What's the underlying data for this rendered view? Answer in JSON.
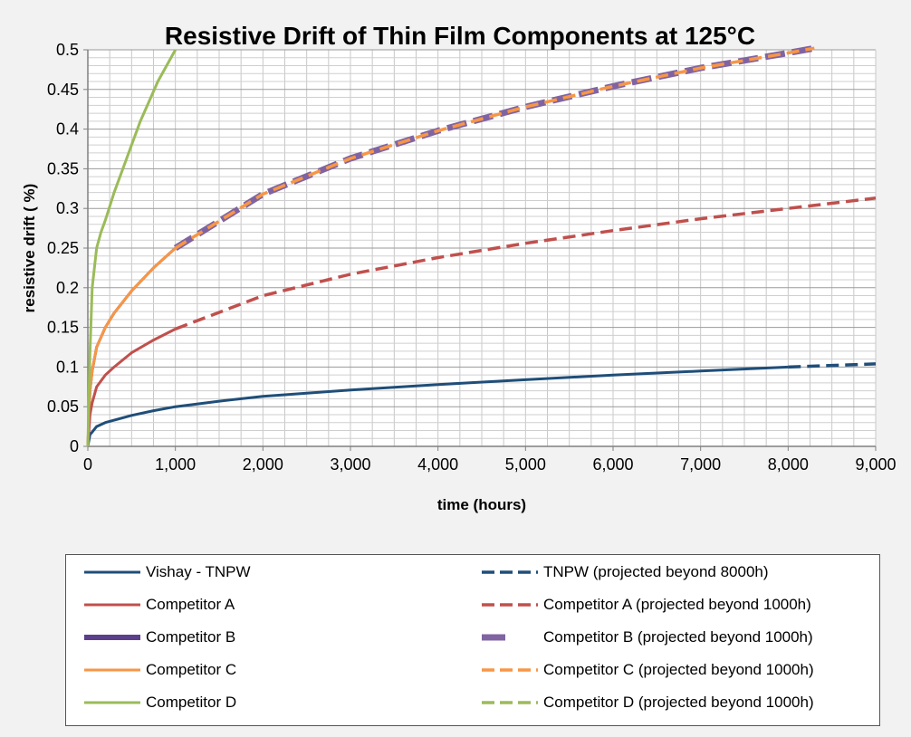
{
  "chart_data": {
    "type": "line",
    "title": "Resistive Drift of Thin Film Components at 125°C",
    "xlabel": "time (hours)",
    "ylabel": "resistive drift ( %)",
    "xlim": [
      0,
      9000
    ],
    "ylim": [
      0,
      0.5
    ],
    "x_ticks": [
      "0",
      "1,000",
      "2,000",
      "3,000",
      "4,000",
      "5,000",
      "6,000",
      "7,000",
      "8,000",
      "9,000"
    ],
    "y_ticks": [
      "0",
      "0.05",
      "0.1",
      "0.15",
      "0.2",
      "0.25",
      "0.3",
      "0.35",
      "0.4",
      "0.45",
      "0.5"
    ],
    "grid": true,
    "legend_position": "bottom",
    "series": [
      {
        "name": "Vishay - TNPW",
        "color": "#1f4e79",
        "style": "solid",
        "x": [
          0,
          25,
          50,
          100,
          200,
          300,
          500,
          750,
          1000,
          1500,
          2000,
          3000,
          4000,
          5000,
          6000,
          7000,
          8000
        ],
        "y": [
          0,
          0.015,
          0.018,
          0.025,
          0.03,
          0.033,
          0.039,
          0.045,
          0.05,
          0.057,
          0.063,
          0.071,
          0.078,
          0.084,
          0.09,
          0.095,
          0.1
        ]
      },
      {
        "name": "TNPW (projected beyond 8000h)",
        "color": "#1f4e79",
        "style": "dashed",
        "x": [
          8000,
          8500,
          9000
        ],
        "y": [
          0.1,
          0.102,
          0.104
        ]
      },
      {
        "name": "Competitor A",
        "color": "#c0504d",
        "style": "solid",
        "x": [
          0,
          25,
          50,
          100,
          200,
          300,
          500,
          750,
          1000
        ],
        "y": [
          0,
          0.04,
          0.055,
          0.075,
          0.09,
          0.1,
          0.118,
          0.134,
          0.148
        ]
      },
      {
        "name": "Competitor A (projected beyond 1000h)",
        "color": "#c0504d",
        "style": "dashed",
        "x": [
          1000,
          2000,
          3000,
          4000,
          5000,
          6000,
          7000,
          8000,
          9000
        ],
        "y": [
          0.148,
          0.19,
          0.217,
          0.238,
          0.256,
          0.272,
          0.287,
          0.3,
          0.313
        ]
      },
      {
        "name": "Competitor B",
        "color": "#5c3f8a",
        "style": "solid",
        "x": [
          0,
          25,
          50,
          100,
          200,
          300,
          500,
          750,
          1000
        ],
        "y": [
          0,
          0.07,
          0.095,
          0.125,
          0.15,
          0.168,
          0.196,
          0.225,
          0.25
        ]
      },
      {
        "name": "Competitor B (projected beyond 1000h)",
        "color": "#8064a2",
        "style": "thick-dashed",
        "x": [
          1000,
          2000,
          3000,
          4000,
          5000,
          6000,
          7000,
          8000,
          8300
        ],
        "y": [
          0.25,
          0.318,
          0.363,
          0.398,
          0.428,
          0.454,
          0.477,
          0.496,
          0.502
        ]
      },
      {
        "name": "Competitor C",
        "color": "#f79646",
        "style": "solid",
        "x": [
          0,
          25,
          50,
          100,
          200,
          300,
          500,
          750,
          1000
        ],
        "y": [
          0,
          0.07,
          0.095,
          0.125,
          0.15,
          0.168,
          0.196,
          0.225,
          0.25
        ]
      },
      {
        "name": "Competitor C (projected beyond 1000h)",
        "color": "#f79646",
        "style": "dashed",
        "x": [
          1000,
          2000,
          3000,
          4000,
          5000,
          6000,
          7000,
          8000,
          8300
        ],
        "y": [
          0.25,
          0.318,
          0.363,
          0.398,
          0.428,
          0.454,
          0.477,
          0.496,
          0.502
        ]
      },
      {
        "name": "Competitor D",
        "color": "#9bbb59",
        "style": "solid",
        "x": [
          0,
          25,
          50,
          100,
          150,
          200,
          300,
          400,
          500,
          600,
          700,
          800,
          900,
          1000
        ],
        "y": [
          0,
          0.12,
          0.2,
          0.25,
          0.27,
          0.285,
          0.32,
          0.35,
          0.38,
          0.41,
          0.435,
          0.46,
          0.48,
          0.5
        ]
      },
      {
        "name": "Competitor D (projected beyond 1000h)",
        "color": "#9bbb59",
        "style": "dashed",
        "x": [],
        "y": []
      }
    ]
  }
}
